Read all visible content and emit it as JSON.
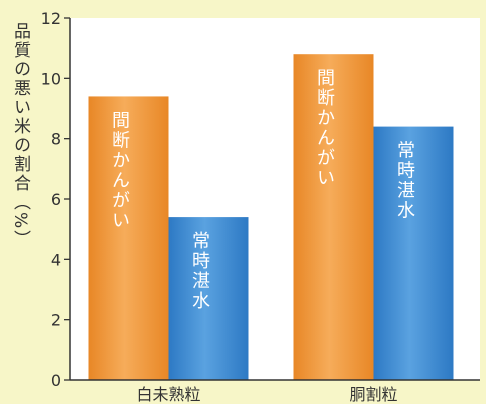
{
  "chart_data": {
    "type": "bar",
    "ylabel": "品質の悪い米の割合（%）",
    "categories": [
      "白未熟粒",
      "胴割粒"
    ],
    "ylim": [
      0,
      12
    ],
    "yticks": [
      0,
      2,
      4,
      6,
      8,
      10,
      12
    ],
    "series": [
      {
        "name": "間断かんがい",
        "values": [
          9.4,
          10.8
        ],
        "color": "#ef9a3a"
      },
      {
        "name": "常時湛水",
        "values": [
          5.4,
          8.4
        ],
        "color": "#3b8ad2"
      }
    ],
    "grid": false,
    "legend": "none"
  }
}
